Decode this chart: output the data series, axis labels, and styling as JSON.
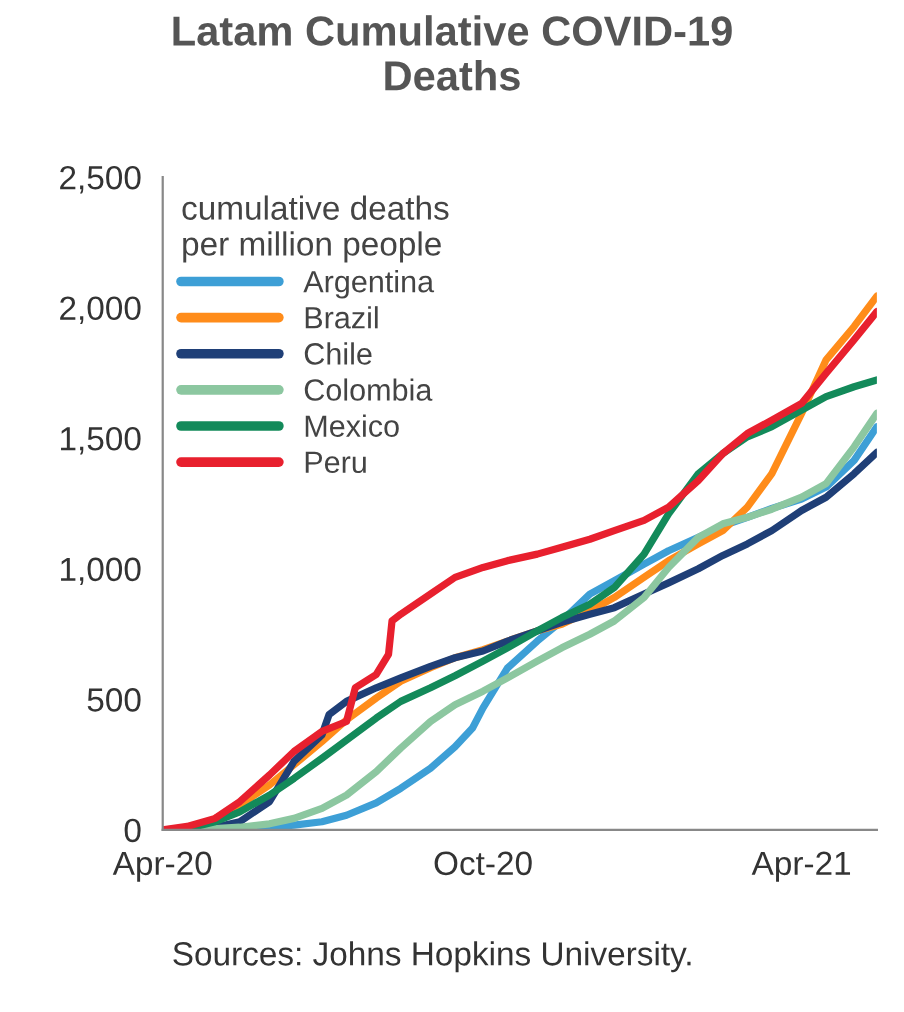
{
  "chart_data": {
    "type": "line",
    "title": "Latam Cumulative COVID-19\nDeaths",
    "legend_title": "cumulative deaths\nper million people",
    "x": [
      "2020-04-01",
      "2020-04-15",
      "2020-05-01",
      "2020-05-15",
      "2020-06-01",
      "2020-06-15",
      "2020-07-01",
      "2020-07-15",
      "2020-08-01",
      "2020-08-15",
      "2020-09-01",
      "2020-09-15",
      "2020-10-01",
      "2020-10-15",
      "2020-11-01",
      "2020-11-15",
      "2020-12-01",
      "2020-12-15",
      "2021-01-01",
      "2021-01-15",
      "2021-02-01",
      "2021-02-15",
      "2021-03-01",
      "2021-03-15",
      "2021-04-01",
      "2021-04-15",
      "2021-05-01",
      "2021-05-14"
    ],
    "series": [
      {
        "name": "Argentina",
        "color": "#3d9fd6",
        "x": [
          "2020-05-15",
          "2020-06-01",
          "2020-06-15",
          "2020-07-01",
          "2020-07-15",
          "2020-08-01",
          "2020-08-15",
          "2020-09-01",
          "2020-09-15",
          "2020-09-25",
          "2020-10-01",
          "2020-10-15",
          "2020-11-01",
          "2020-11-15",
          "2020-12-01",
          "2020-12-15",
          "2021-01-01",
          "2021-01-15",
          "2021-02-01",
          "2021-02-15",
          "2021-03-01",
          "2021-03-15",
          "2021-04-01",
          "2021-04-15",
          "2021-05-01",
          "2021-05-14"
        ],
        "values": [
          2,
          10,
          18,
          31,
          56,
          103,
          159,
          236,
          318,
          390,
          467,
          620,
          723,
          800,
          903,
          954,
          1018,
          1069,
          1120,
          1164,
          1197,
          1231,
          1267,
          1313,
          1415,
          1544
        ]
      },
      {
        "name": "Brazil",
        "color": "#ff8c1a",
        "values": [
          null,
          null,
          44,
          95,
          172,
          249,
          338,
          421,
          505,
          569,
          621,
          659,
          690,
          723,
          762,
          787,
          838,
          890,
          967,
          1031,
          1095,
          1146,
          1236,
          1364,
          1595,
          1800,
          1928,
          2044
        ]
      },
      {
        "name": "Chile",
        "color": "#1f3f77",
        "x": [
          "2020-04-01",
          "2020-04-15",
          "2020-05-01",
          "2020-05-15",
          "2020-06-01",
          "2020-06-15",
          "2020-07-01",
          "2020-07-05",
          "2020-07-15",
          "2020-08-01",
          "2020-08-15",
          "2020-09-01",
          "2020-09-15",
          "2020-10-01",
          "2020-10-15",
          "2020-11-01",
          "2020-11-15",
          "2020-12-01",
          "2020-12-15",
          "2021-01-01",
          "2021-01-15",
          "2021-02-01",
          "2021-02-15",
          "2021-03-01",
          "2021-03-15",
          "2021-04-01",
          "2021-04-15",
          "2021-05-01",
          "2021-05-14"
        ],
        "values": [
          0,
          0,
          10,
          31,
          108,
          262,
          364,
          441,
          492,
          544,
          582,
          626,
          659,
          685,
          723,
          762,
          795,
          826,
          851,
          903,
          946,
          1000,
          1051,
          1095,
          1146,
          1223,
          1274,
          1364,
          1446
        ]
      },
      {
        "name": "Colombia",
        "color": "#8cc7a0",
        "values": [
          0,
          0,
          5,
          10,
          23,
          44,
          82,
          133,
          223,
          313,
          415,
          479,
          531,
          582,
          646,
          697,
          749,
          800,
          890,
          1005,
          1120,
          1172,
          1197,
          1228,
          1274,
          1326,
          1467,
          1595
        ]
      },
      {
        "name": "Mexico",
        "color": "#138a5a",
        "values": [
          0,
          5,
          31,
          69,
          133,
          197,
          274,
          344,
          428,
          492,
          544,
          590,
          646,
          697,
          762,
          813,
          864,
          928,
          1056,
          1210,
          1364,
          1441,
          1505,
          1544,
          1608,
          1659,
          1697,
          1723
        ]
      },
      {
        "name": "Peru",
        "color": "#e8202e",
        "x": [
          "2020-04-01",
          "2020-04-15",
          "2020-05-01",
          "2020-05-15",
          "2020-06-01",
          "2020-06-15",
          "2020-07-01",
          "2020-07-15",
          "2020-07-20",
          "2020-08-01",
          "2020-08-08",
          "2020-08-10",
          "2020-08-15",
          "2020-09-01",
          "2020-09-15",
          "2020-10-01",
          "2020-10-15",
          "2020-11-01",
          "2020-11-15",
          "2020-12-01",
          "2020-12-15",
          "2021-01-01",
          "2021-01-15",
          "2021-02-01",
          "2021-02-15",
          "2021-03-01",
          "2021-03-15",
          "2021-04-01",
          "2021-04-15",
          "2021-05-01",
          "2021-05-14"
        ],
        "values": [
          0,
          13,
          44,
          108,
          210,
          300,
          377,
          415,
          544,
          595,
          672,
          800,
          826,
          903,
          967,
          1005,
          1031,
          1056,
          1082,
          1113,
          1146,
          1185,
          1236,
          1338,
          1441,
          1518,
          1569,
          1633,
          1749,
          1877,
          1985
        ]
      }
    ],
    "xlim": [
      "2020-04-01",
      "2021-05-14"
    ],
    "xticks": [
      {
        "value": "2020-04-01",
        "label": "Apr-20"
      },
      {
        "value": "2020-10-01",
        "label": "Oct-20"
      },
      {
        "value": "2021-04-01",
        "label": "Apr-21"
      }
    ],
    "ylim": [
      0,
      2500
    ],
    "yticks": [
      0,
      500,
      {
        "value": 1000,
        "label": "1,000"
      },
      {
        "value": 1500,
        "label": "1,500"
      },
      {
        "value": 2000,
        "label": "2,000"
      },
      {
        "value": 2500,
        "label": "2,500"
      }
    ],
    "grid": false,
    "legend": "top left",
    "marker": "none",
    "line_style": "solid",
    "annotations": [
      "Sources: Johns Hopkins University."
    ]
  }
}
